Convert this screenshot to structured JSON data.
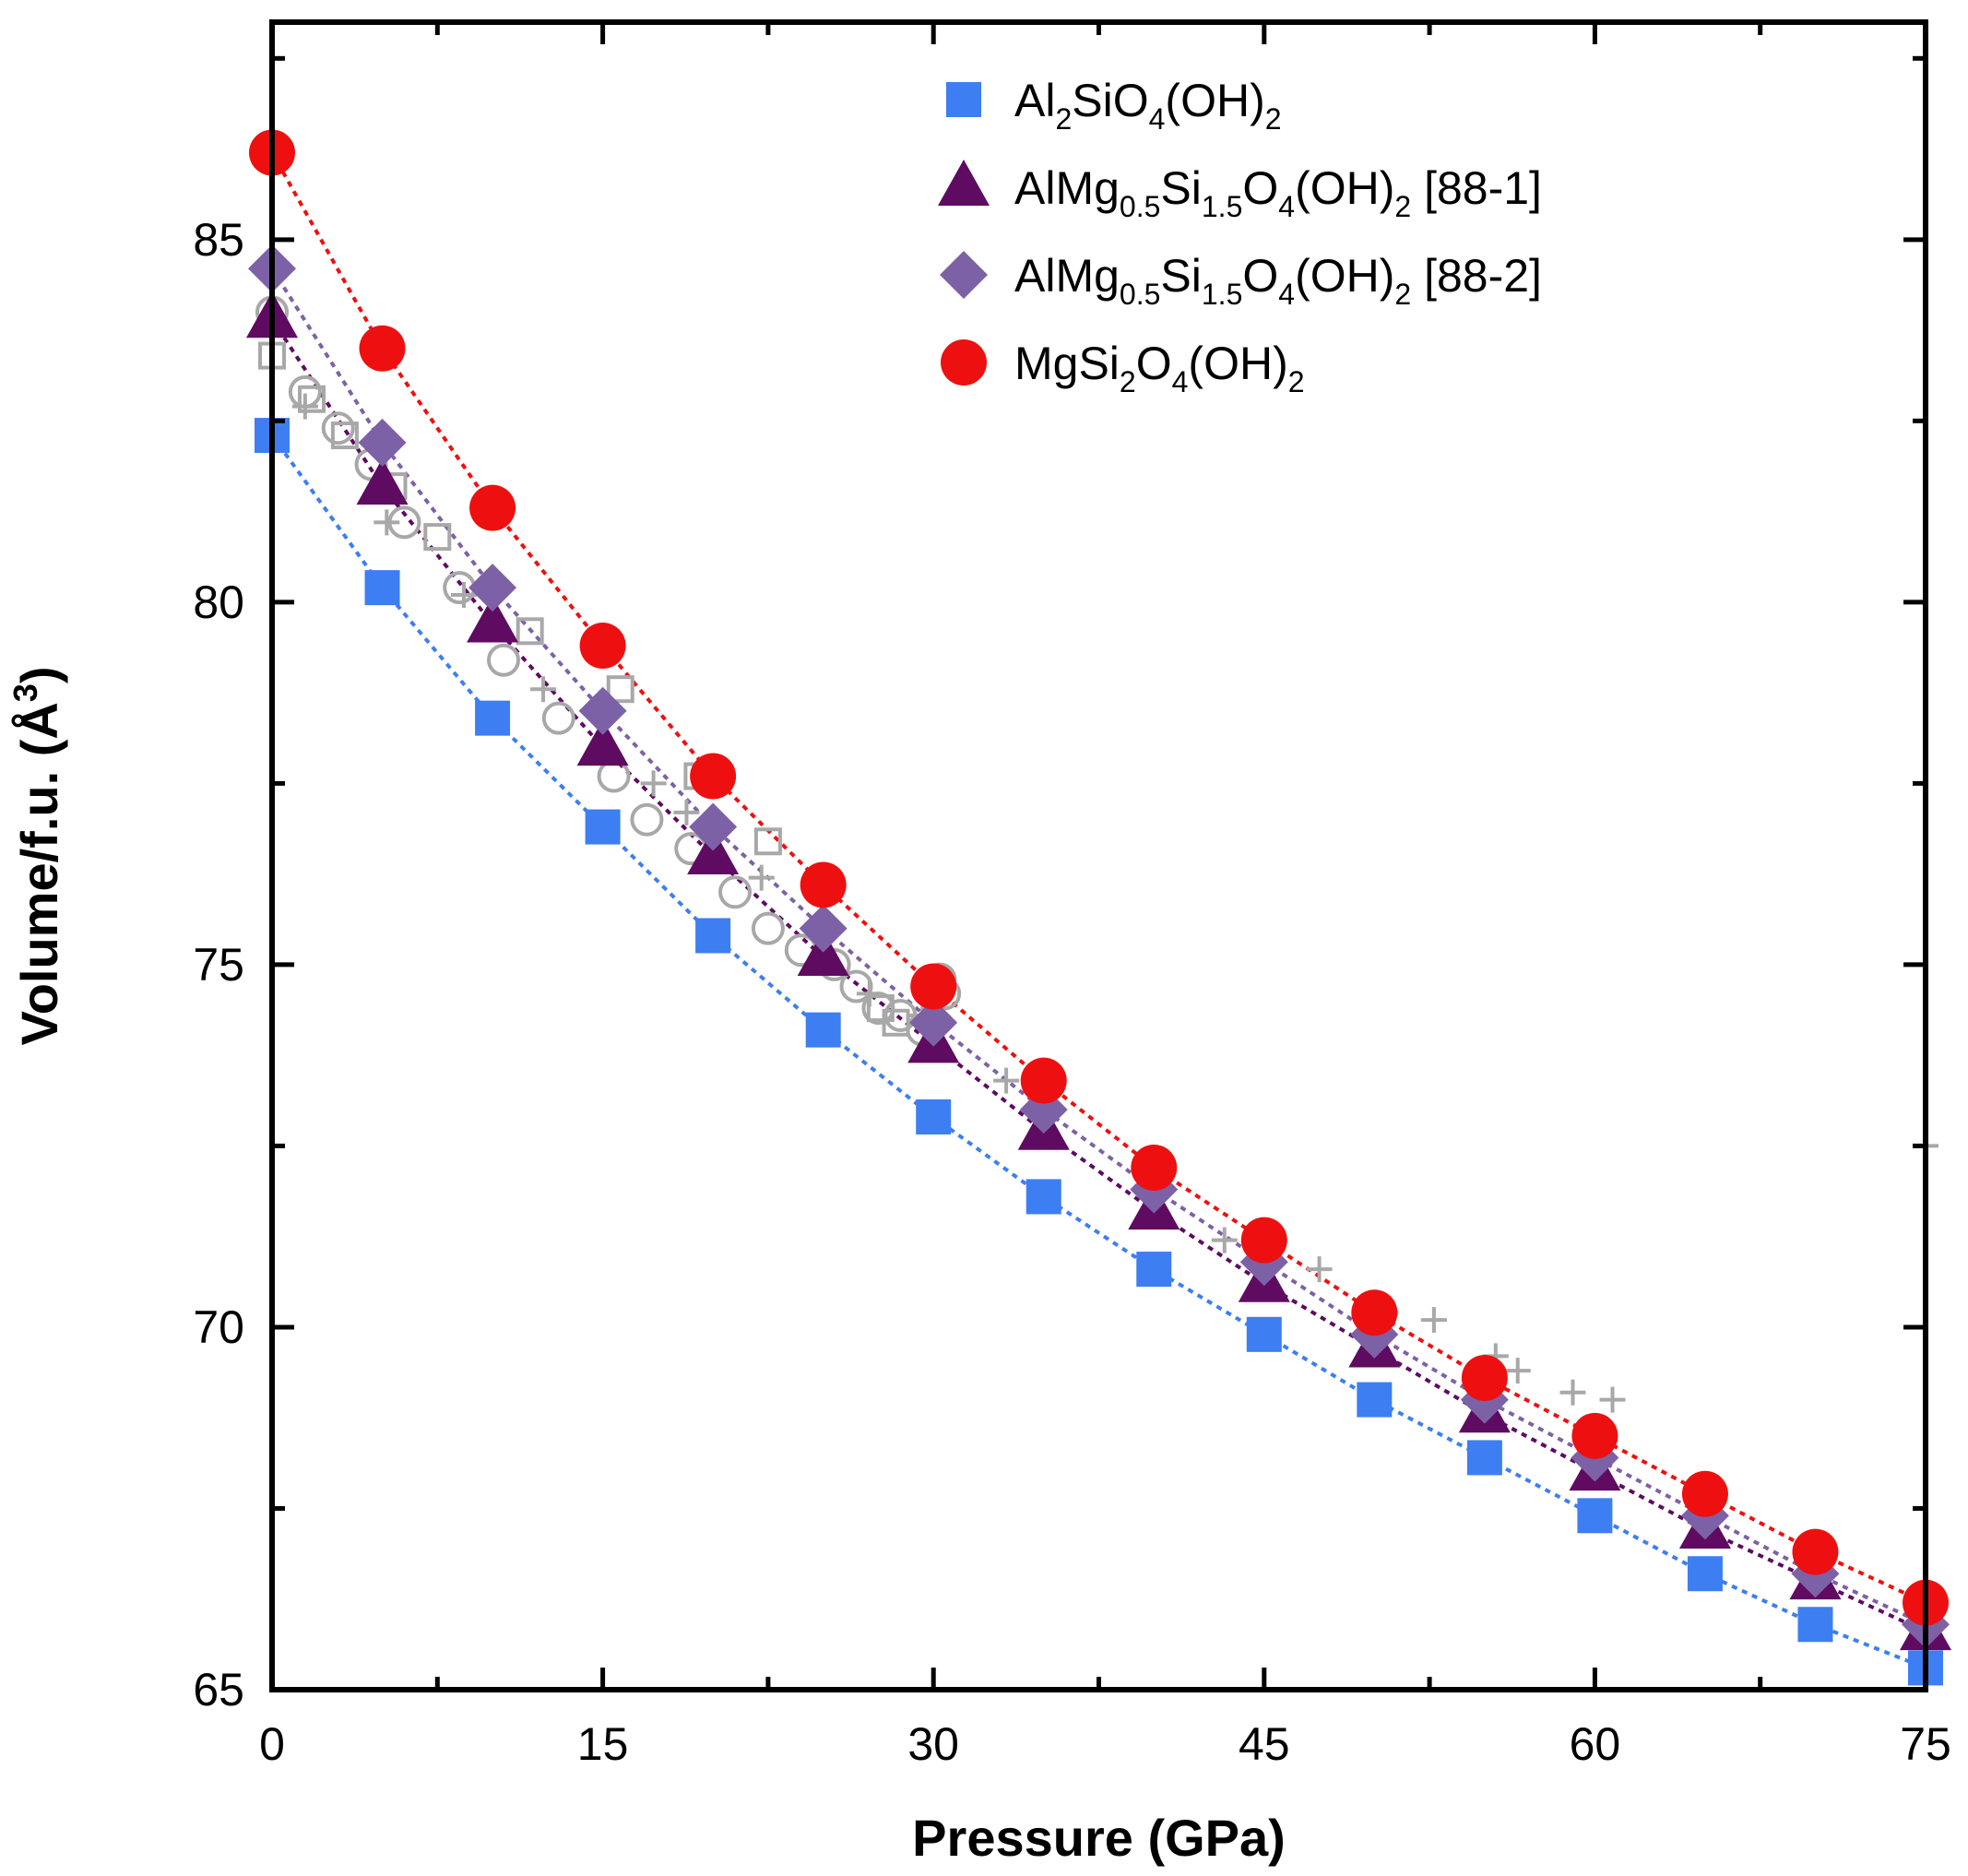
{
  "chart_data": {
    "type": "scatter",
    "xlabel": "Pressure (GPa)",
    "ylabel_parts": {
      "main": "Volume/f.u. (Å",
      "sup": "3",
      "end": ")"
    },
    "xlim": [
      0,
      75
    ],
    "ylim": [
      65,
      88
    ],
    "x_ticks": [
      0,
      15,
      30,
      45,
      60,
      75
    ],
    "y_ticks": [
      65,
      70,
      75,
      80,
      85
    ],
    "grid": false,
    "legend_position": "top-right",
    "pressures": [
      0,
      5,
      10,
      15,
      20,
      25,
      30,
      35,
      40,
      45,
      50,
      55,
      60,
      65,
      70,
      75
    ],
    "series": [
      {
        "key": "al2sio4",
        "marker": "square",
        "color": "#3d7ef2",
        "legend": [
          {
            "t": "Al",
            "s": ""
          },
          {
            "t": "2",
            "s": "sub"
          },
          {
            "t": "SiO",
            "s": ""
          },
          {
            "t": "4",
            "s": "sub"
          },
          {
            "t": "(OH)",
            "s": ""
          },
          {
            "t": "2",
            "s": "sub"
          }
        ],
        "values": [
          82.3,
          80.2,
          78.4,
          76.9,
          75.4,
          74.1,
          72.9,
          71.8,
          70.8,
          69.9,
          69.0,
          68.2,
          67.4,
          66.6,
          65.9,
          65.3
        ]
      },
      {
        "key": "almg-88-1",
        "marker": "triangle",
        "color": "#5e0b61",
        "legend": [
          {
            "t": "AlMg",
            "s": ""
          },
          {
            "t": "0.5",
            "s": "sub"
          },
          {
            "t": "Si",
            "s": ""
          },
          {
            "t": "1.5",
            "s": "sub"
          },
          {
            "t": "O",
            "s": ""
          },
          {
            "t": "4",
            "s": "sub"
          },
          {
            "t": "(OH)",
            "s": ""
          },
          {
            "t": "2",
            "s": "sub"
          },
          {
            "t": " [88-1]",
            "s": ""
          }
        ],
        "values": [
          83.9,
          81.6,
          79.7,
          78.0,
          76.5,
          75.1,
          73.9,
          72.7,
          71.6,
          70.6,
          69.7,
          68.8,
          68.0,
          67.2,
          66.5,
          65.8
        ]
      },
      {
        "key": "almg-88-2",
        "marker": "diamond",
        "color": "#7d61a6",
        "legend": [
          {
            "t": "AlMg",
            "s": ""
          },
          {
            "t": "0.5",
            "s": "sub"
          },
          {
            "t": "Si",
            "s": ""
          },
          {
            "t": "1.5",
            "s": "sub"
          },
          {
            "t": "O",
            "s": ""
          },
          {
            "t": "4",
            "s": "sub"
          },
          {
            "t": "(OH)",
            "s": ""
          },
          {
            "t": "2",
            "s": "sub"
          },
          {
            "t": " [88-2]",
            "s": ""
          }
        ],
        "values": [
          84.6,
          82.2,
          80.2,
          78.5,
          76.9,
          75.5,
          74.2,
          73.0,
          71.9,
          70.9,
          69.9,
          69.0,
          68.2,
          67.4,
          66.6,
          65.9
        ]
      },
      {
        "key": "mgsi2o4",
        "marker": "circle",
        "color": "#ee1010",
        "legend": [
          {
            "t": "MgSi",
            "s": ""
          },
          {
            "t": "2",
            "s": "sub"
          },
          {
            "t": "O",
            "s": ""
          },
          {
            "t": "4",
            "s": "sub"
          },
          {
            "t": "(OH)",
            "s": ""
          },
          {
            "t": "2",
            "s": "sub"
          }
        ],
        "values": [
          86.2,
          83.5,
          81.3,
          79.4,
          77.6,
          76.1,
          74.7,
          73.4,
          72.2,
          71.2,
          70.2,
          69.3,
          68.5,
          67.7,
          66.9,
          66.2
        ]
      }
    ],
    "reference_points": {
      "color": "#a8a8a8",
      "circles": [
        [
          0,
          84.0
        ],
        [
          1.5,
          82.9
        ],
        [
          3,
          82.4
        ],
        [
          4.5,
          81.9
        ],
        [
          6,
          81.1
        ],
        [
          8.5,
          80.2
        ],
        [
          10.5,
          79.2
        ],
        [
          13,
          78.4
        ],
        [
          15.5,
          77.6
        ],
        [
          17,
          77.0
        ],
        [
          19,
          76.6
        ],
        [
          21,
          76.0
        ],
        [
          22.5,
          75.5
        ],
        [
          24,
          75.2
        ],
        [
          25.5,
          75.0
        ],
        [
          26.5,
          74.7
        ],
        [
          27.5,
          74.4
        ],
        [
          28.5,
          74.3
        ],
        [
          29.5,
          74.1
        ],
        [
          30.3,
          74.8
        ],
        [
          30.5,
          74.6
        ]
      ],
      "squares": [
        [
          0,
          83.4
        ],
        [
          1.8,
          82.8
        ],
        [
          3.3,
          82.3
        ],
        [
          5.5,
          81.6
        ],
        [
          7.5,
          80.9
        ],
        [
          11.7,
          79.6
        ],
        [
          15.8,
          78.8
        ],
        [
          19.3,
          77.6
        ],
        [
          22.5,
          76.7
        ],
        [
          27.6,
          74.4
        ],
        [
          28.3,
          74.2
        ]
      ],
      "crosses": [
        [
          1.5,
          82.7
        ],
        [
          5.2,
          81.1
        ],
        [
          8.7,
          80.1
        ],
        [
          12.3,
          78.8
        ],
        [
          17.3,
          77.5
        ],
        [
          18.8,
          77.1
        ],
        [
          22.2,
          76.2
        ],
        [
          27.1,
          74.6
        ],
        [
          29.5,
          74.3
        ],
        [
          33.3,
          73.4
        ],
        [
          43.2,
          71.2
        ],
        [
          47.5,
          70.8
        ],
        [
          50.5,
          70.2
        ],
        [
          52.7,
          70.1
        ],
        [
          55.5,
          69.6
        ],
        [
          56.5,
          69.4
        ],
        [
          59,
          69.1
        ],
        [
          60.8,
          69.0
        ],
        [
          75,
          72.5
        ]
      ]
    }
  }
}
